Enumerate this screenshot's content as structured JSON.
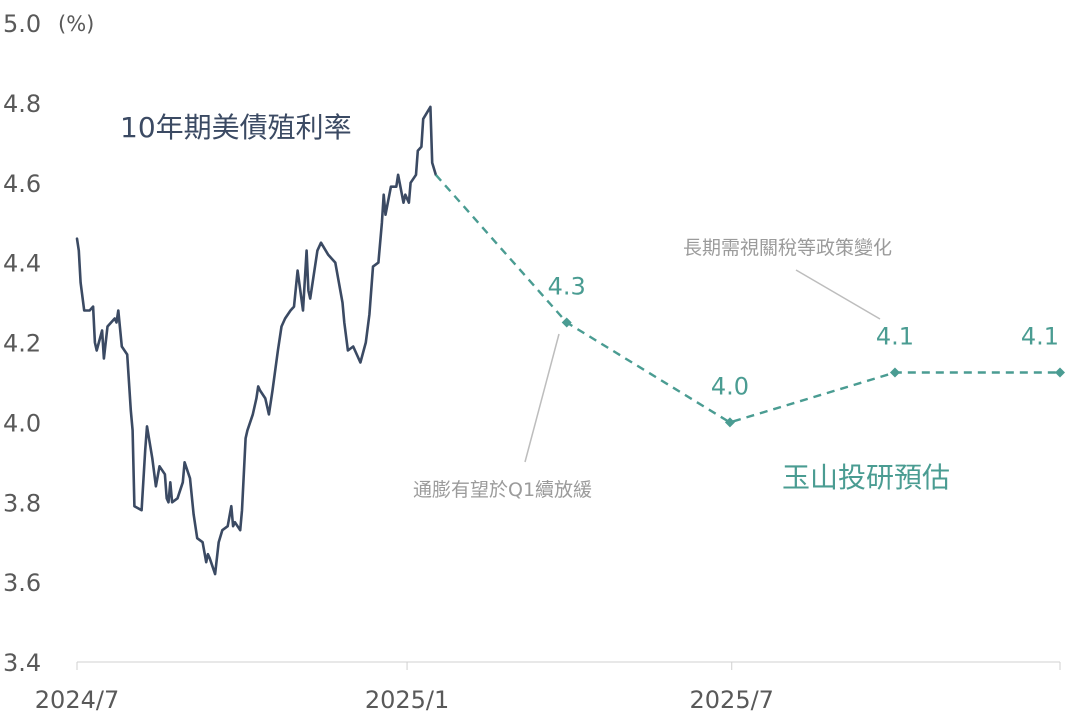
{
  "chart_data": {
    "type": "line",
    "unit_label": "(%)",
    "ylim": [
      3.4,
      5.0
    ],
    "y_ticks": [
      "5.0",
      "4.8",
      "4.6",
      "4.4",
      "4.2",
      "4.0",
      "3.8",
      "3.6",
      "3.4"
    ],
    "x_ticks": [
      "2024/7",
      "2025/1",
      "2025/7"
    ],
    "series": [
      {
        "name": "10年期美債殖利率",
        "color": "#3b4a63",
        "style": "solid",
        "points": [
          [
            "2024-07-01",
            4.46
          ],
          [
            "2024-07-02",
            4.43
          ],
          [
            "2024-07-03",
            4.35
          ],
          [
            "2024-07-05",
            4.28
          ],
          [
            "2024-07-08",
            4.28
          ],
          [
            "2024-07-10",
            4.29
          ],
          [
            "2024-07-11",
            4.2
          ],
          [
            "2024-07-12",
            4.18
          ],
          [
            "2024-07-15",
            4.23
          ],
          [
            "2024-07-16",
            4.16
          ],
          [
            "2024-07-18",
            4.24
          ],
          [
            "2024-07-22",
            4.26
          ],
          [
            "2024-07-23",
            4.25
          ],
          [
            "2024-07-24",
            4.28
          ],
          [
            "2024-07-26",
            4.19
          ],
          [
            "2024-07-29",
            4.17
          ],
          [
            "2024-07-31",
            4.03
          ],
          [
            "2024-08-01",
            3.98
          ],
          [
            "2024-08-02",
            3.79
          ],
          [
            "2024-08-06",
            3.78
          ],
          [
            "2024-08-08",
            3.93
          ],
          [
            "2024-08-09",
            3.99
          ],
          [
            "2024-08-12",
            3.91
          ],
          [
            "2024-08-14",
            3.84
          ],
          [
            "2024-08-16",
            3.89
          ],
          [
            "2024-08-19",
            3.87
          ],
          [
            "2024-08-20",
            3.81
          ],
          [
            "2024-08-21",
            3.8
          ],
          [
            "2024-08-22",
            3.85
          ],
          [
            "2024-08-23",
            3.8
          ],
          [
            "2024-08-26",
            3.81
          ],
          [
            "2024-08-29",
            3.85
          ],
          [
            "2024-08-30",
            3.9
          ],
          [
            "2024-09-02",
            3.86
          ],
          [
            "2024-09-04",
            3.77
          ],
          [
            "2024-09-06",
            3.71
          ],
          [
            "2024-09-09",
            3.7
          ],
          [
            "2024-09-11",
            3.65
          ],
          [
            "2024-09-12",
            3.67
          ],
          [
            "2024-09-13",
            3.66
          ],
          [
            "2024-09-16",
            3.62
          ],
          [
            "2024-09-18",
            3.7
          ],
          [
            "2024-09-20",
            3.73
          ],
          [
            "2024-09-23",
            3.74
          ],
          [
            "2024-09-25",
            3.79
          ],
          [
            "2024-09-26",
            3.74
          ],
          [
            "2024-09-27",
            3.75
          ],
          [
            "2024-09-30",
            3.73
          ],
          [
            "2024-10-01",
            3.78
          ],
          [
            "2024-10-03",
            3.96
          ],
          [
            "2024-10-04",
            3.98
          ],
          [
            "2024-10-07",
            4.02
          ],
          [
            "2024-10-09",
            4.06
          ],
          [
            "2024-10-10",
            4.09
          ],
          [
            "2024-10-11",
            4.08
          ],
          [
            "2024-10-14",
            4.06
          ],
          [
            "2024-10-16",
            4.02
          ],
          [
            "2024-10-18",
            4.08
          ],
          [
            "2024-10-21",
            4.18
          ],
          [
            "2024-10-23",
            4.24
          ],
          [
            "2024-10-25",
            4.26
          ],
          [
            "2024-10-28",
            4.28
          ],
          [
            "2024-10-30",
            4.29
          ],
          [
            "2024-11-01",
            4.38
          ],
          [
            "2024-11-04",
            4.28
          ],
          [
            "2024-11-06",
            4.43
          ],
          [
            "2024-11-07",
            4.33
          ],
          [
            "2024-11-08",
            4.31
          ],
          [
            "2024-11-12",
            4.43
          ],
          [
            "2024-11-14",
            4.45
          ],
          [
            "2024-11-18",
            4.42
          ],
          [
            "2024-11-20",
            4.41
          ],
          [
            "2024-11-22",
            4.4
          ],
          [
            "2024-11-26",
            4.3
          ],
          [
            "2024-11-27",
            4.25
          ],
          [
            "2024-11-29",
            4.18
          ],
          [
            "2024-12-02",
            4.19
          ],
          [
            "2024-12-04",
            4.17
          ],
          [
            "2024-12-06",
            4.15
          ],
          [
            "2024-12-09",
            4.2
          ],
          [
            "2024-12-11",
            4.27
          ],
          [
            "2024-12-13",
            4.39
          ],
          [
            "2024-12-16",
            4.4
          ],
          [
            "2024-12-18",
            4.5
          ],
          [
            "2024-12-19",
            4.57
          ],
          [
            "2024-12-20",
            4.52
          ],
          [
            "2024-12-23",
            4.59
          ],
          [
            "2024-12-26",
            4.59
          ],
          [
            "2024-12-27",
            4.62
          ],
          [
            "2024-12-30",
            4.55
          ],
          [
            "2024-12-31",
            4.57
          ],
          [
            "2025-01-02",
            4.55
          ],
          [
            "2025-01-03",
            4.6
          ],
          [
            "2025-01-06",
            4.62
          ],
          [
            "2025-01-07",
            4.68
          ],
          [
            "2025-01-09",
            4.69
          ],
          [
            "2025-01-10",
            4.76
          ],
          [
            "2025-01-14",
            4.79
          ],
          [
            "2025-01-15",
            4.65
          ],
          [
            "2025-01-17",
            4.62
          ]
        ]
      },
      {
        "name": "玉山投研預估",
        "color": "#4a9c92",
        "style": "dashed",
        "points": [
          [
            "2025-01-17",
            4.62
          ],
          [
            "2025-03-31",
            4.25
          ],
          [
            "2025-06-30",
            4.0
          ],
          [
            "2025-09-30",
            4.125
          ],
          [
            "2025-12-31",
            4.125
          ]
        ],
        "labels": [
          "",
          "4.3",
          "4.0",
          "4.1",
          "4.1"
        ]
      }
    ],
    "annotations": [
      "通膨有望於Q1續放緩",
      "長期需視關稅等政策變化"
    ]
  }
}
